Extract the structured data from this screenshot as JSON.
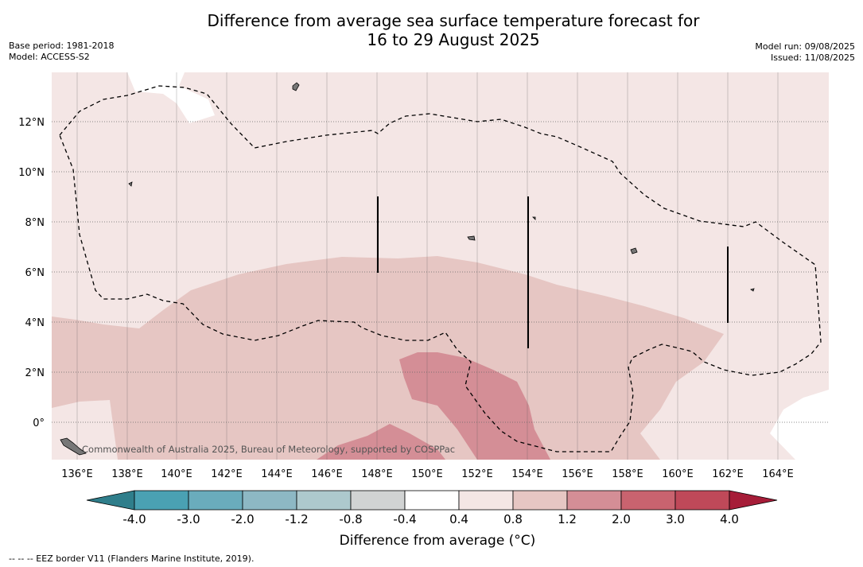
{
  "title_line1": "Difference from average sea surface temperature forecast for",
  "title_line2": "16 to 29 August 2025",
  "base_period": "Base period: 1981-2018",
  "model": "Model: ACCESS-S2",
  "model_run": "Model run: 09/08/2025",
  "issued": "Issued: 11/08/2025",
  "credit": "Commonwealth of Australia 2025, Bureau of Meteorology, supported by COSPPac",
  "footnote": "--  --  -- EEZ border V11 (Flanders Marine Institute, 2019).",
  "map": {
    "lon_labels": [
      "136°E",
      "138°E",
      "140°E",
      "142°E",
      "144°E",
      "146°E",
      "148°E",
      "150°E",
      "152°E",
      "154°E",
      "156°E",
      "158°E",
      "160°E",
      "162°E",
      "164°E"
    ],
    "lat_labels": [
      "12°N",
      "10°N",
      "8°N",
      "6°N",
      "4°N",
      "2°N",
      "0°"
    ],
    "shading_colors": {
      "0.4-0.8": "#f4e6e5",
      "0.8-1.2": "#e6c6c3",
      "1.2-2.0": "#d48e96",
      "above_0.4_white": "#ffffff"
    }
  },
  "colorbar": {
    "label": "Difference from average (°C)",
    "ticks": [
      "-4.0",
      "-3.0",
      "-2.0",
      "-1.2",
      "-0.8",
      "-0.4",
      "0.4",
      "0.8",
      "1.2",
      "2.0",
      "3.0",
      "4.0"
    ],
    "colors": [
      "#2f7e8b",
      "#4aa1b3",
      "#6aacbc",
      "#8db8c4",
      "#adc9cd",
      "#d1d3d3",
      "#ffffff",
      "#f4e6e5",
      "#e6c6c3",
      "#d48e96",
      "#c9636f",
      "#bf4959",
      "#a61d38"
    ]
  }
}
